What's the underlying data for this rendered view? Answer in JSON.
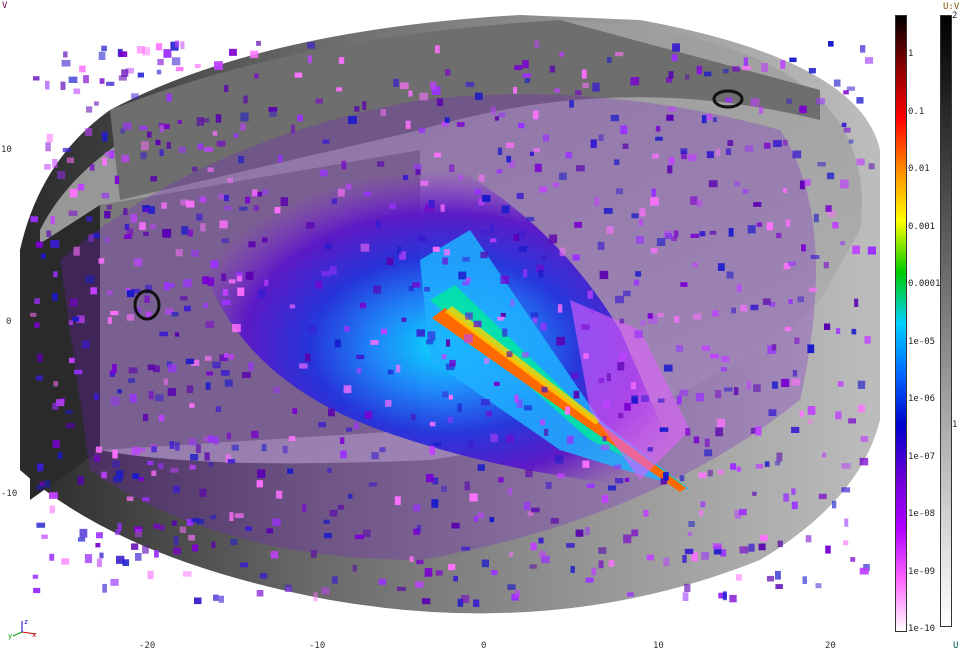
{
  "axes": {
    "v_label": "V",
    "u_label": "U",
    "v_ticks": [
      "10",
      "0",
      "-10"
    ],
    "u_ticks": [
      "-20",
      "-10",
      "0",
      "10",
      "20"
    ]
  },
  "orientation": {
    "x": "x",
    "y": "y",
    "z": "z"
  },
  "colorbar_main": {
    "labels": [
      "1",
      "0.1",
      "0.01",
      "0.001",
      "0.0001",
      "1e-05",
      "1e-06",
      "1e-07",
      "1e-08",
      "1e-09",
      "1e-10"
    ],
    "colors": [
      "#000000",
      "#8b0000",
      "#ff0000",
      "#ff8c00",
      "#ffff00",
      "#00cc00",
      "#00d0ff",
      "#0066ff",
      "#0000cc",
      "#6a00d8",
      "#b000ff",
      "#ff66ff",
      "#ffffff"
    ]
  },
  "colorbar_gray": {
    "title": "U:V",
    "labels": [
      "2",
      "1"
    ],
    "colors": [
      "#000000",
      "#ffffff"
    ]
  },
  "colors": {
    "background": "#ffffff",
    "grey_material": "#8a8a8a",
    "beam": "#ff6a00",
    "axis_text": "#333333"
  }
}
